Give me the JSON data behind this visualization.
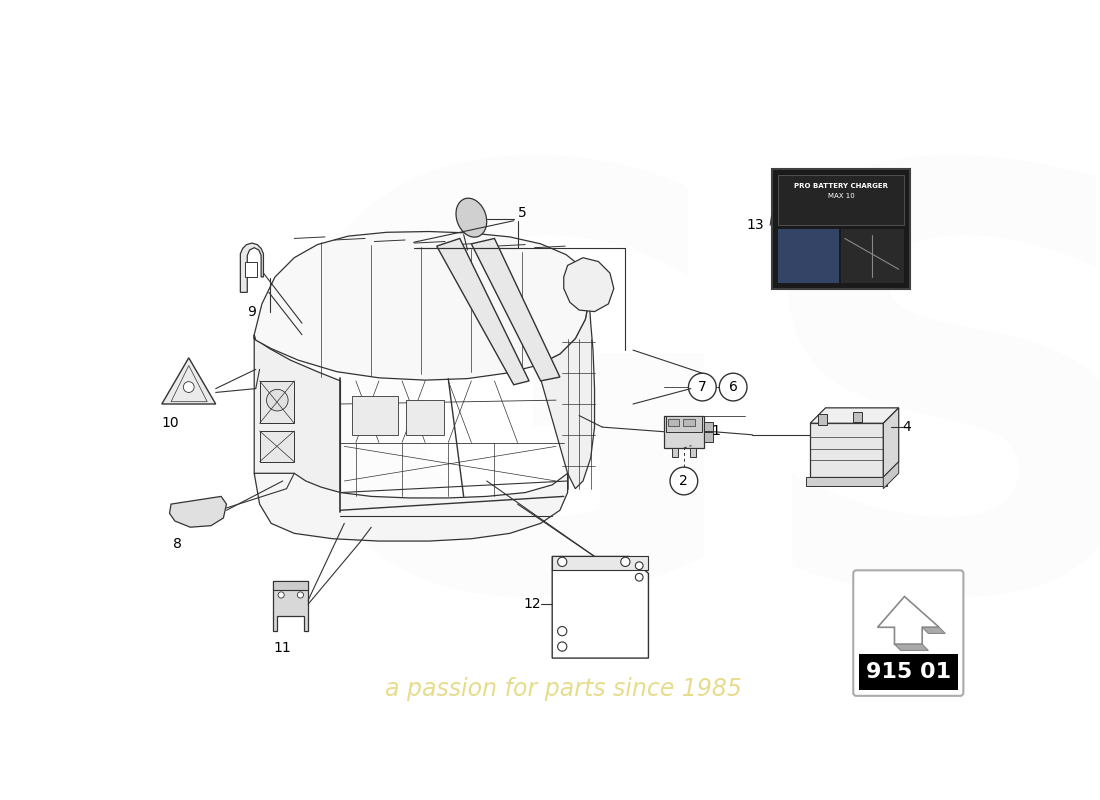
{
  "bg_color": "#ffffff",
  "line_color": "#333333",
  "watermark_text": "a passion for parts since 1985",
  "watermark_color": "#c8b400",
  "watermark_alpha": 0.45,
  "diagram_code": "915 01",
  "white_bg": "#ffffff"
}
